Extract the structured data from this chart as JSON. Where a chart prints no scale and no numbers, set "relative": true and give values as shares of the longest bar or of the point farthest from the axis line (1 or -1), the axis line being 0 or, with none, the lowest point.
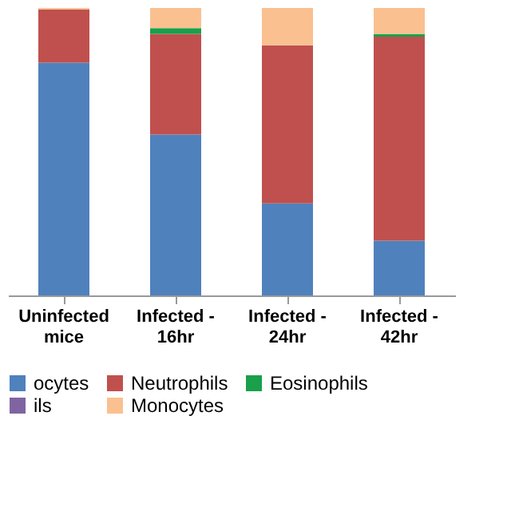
{
  "chart_data": {
    "type": "bar",
    "stacked": true,
    "relative": true,
    "legend": "bottom",
    "grid": false,
    "categories": [
      "Uninfected mice",
      "Infected - 16hr",
      "Infected - 24hr",
      "Infected - 42hr"
    ],
    "series": [
      {
        "name": "ocytes",
        "color": "#4f81bd",
        "values": [
          0.81,
          0.56,
          0.32,
          0.19
        ]
      },
      {
        "name": "Neutrophils",
        "color": "#c0504d",
        "values": [
          0.185,
          0.35,
          0.55,
          0.71
        ]
      },
      {
        "name": "Eosinophils",
        "color": "#1a9f4b",
        "values": [
          null,
          0.02,
          null,
          0.01
        ]
      },
      {
        "name": "ils",
        "color": "#8064a2",
        "values": [
          null,
          null,
          null,
          null
        ]
      },
      {
        "name": "Monocytes",
        "color": "#fac090",
        "values": [
          0.005,
          0.07,
          0.13,
          0.09
        ]
      }
    ]
  }
}
